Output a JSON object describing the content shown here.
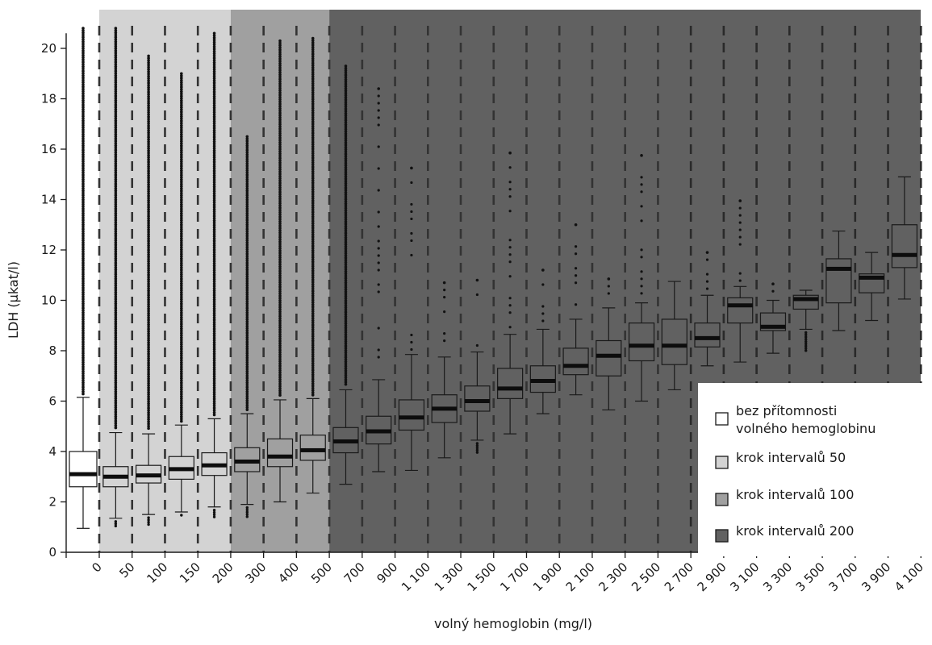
{
  "chart_data": {
    "type": "boxplot",
    "xlabel": "volný hemoglobin (mg/l)",
    "ylabel": "LDH (µkat/l)",
    "ylim": [
      0,
      21
    ],
    "yticks": [
      0,
      2,
      4,
      6,
      8,
      10,
      12,
      14,
      16,
      18,
      20
    ],
    "xtick_labels": [
      "0",
      "50",
      "100",
      "150",
      "200",
      "300",
      "400",
      "500",
      "700",
      "900",
      "1 100",
      "1 300",
      "1 500",
      "1 700",
      "1 900",
      "2 100",
      "2 300",
      "2 500",
      "2 700",
      "2 900",
      "3 100",
      "3 300",
      "3 500",
      "3 700",
      "3 900",
      "4 100"
    ],
    "legend": {
      "position": "bottom-right",
      "entries": [
        {
          "label": "bez přítomnosti volného hemoglobinu",
          "lines": [
            "bez přítomnosti",
            "volného hemoglobinu"
          ],
          "color": "#ffffff"
        },
        {
          "label": "krok intervalů 50",
          "lines": [
            "krok intervalů 50"
          ],
          "color": "#d3d3d3"
        },
        {
          "label": "krok intervalů 100",
          "lines": [
            "krok intervalů 100"
          ],
          "color": "#a0a0a0"
        },
        {
          "label": "krok intervalů 200",
          "lines": [
            "krok intervalů 200"
          ],
          "color": "#616161"
        }
      ]
    },
    "boxes": [
      {
        "group": 0,
        "q1": 2.6,
        "median": 3.1,
        "q3": 4.0,
        "whisker_low": 0.95,
        "whisker_high": 6.15,
        "outliers_max": 20.8
      },
      {
        "group": 1,
        "q1": 2.6,
        "median": 3.0,
        "q3": 3.4,
        "whisker_low": 1.35,
        "whisker_high": 4.75,
        "outliers_min": 1.0,
        "outliers_max": 20.8
      },
      {
        "group": 1,
        "q1": 2.75,
        "median": 3.05,
        "q3": 3.45,
        "whisker_low": 1.5,
        "whisker_high": 4.7,
        "outliers_min": 1.1,
        "outliers_max": 19.7
      },
      {
        "group": 1,
        "q1": 2.9,
        "median": 3.3,
        "q3": 3.8,
        "whisker_low": 1.6,
        "whisker_high": 5.05,
        "outliers_min": 1.45,
        "outliers_max": 19.0
      },
      {
        "group": 1,
        "q1": 3.05,
        "median": 3.45,
        "q3": 3.95,
        "whisker_low": 1.8,
        "whisker_high": 5.3,
        "outliers_min": 1.4,
        "outliers_max": 20.6
      },
      {
        "group": 2,
        "q1": 3.2,
        "median": 3.6,
        "q3": 4.15,
        "whisker_low": 1.9,
        "whisker_high": 5.5,
        "outliers_min": 1.35,
        "outliers_max": 16.5
      },
      {
        "group": 2,
        "q1": 3.4,
        "median": 3.8,
        "q3": 4.5,
        "whisker_low": 2.0,
        "whisker_high": 6.05,
        "outliers_max": 20.3
      },
      {
        "group": 2,
        "q1": 3.65,
        "median": 4.05,
        "q3": 4.65,
        "whisker_low": 2.35,
        "whisker_high": 6.1,
        "outliers_max": 20.4
      },
      {
        "group": 3,
        "q1": 3.95,
        "median": 4.4,
        "q3": 4.95,
        "whisker_low": 2.7,
        "whisker_high": 6.45,
        "outliers_max": 19.3
      },
      {
        "group": 3,
        "q1": 4.3,
        "median": 4.8,
        "q3": 5.4,
        "whisker_low": 3.2,
        "whisker_high": 6.85,
        "outliers_max": 18.4
      },
      {
        "group": 3,
        "q1": 4.85,
        "median": 5.35,
        "q3": 6.05,
        "whisker_low": 3.25,
        "whisker_high": 7.85,
        "outliers_max": 15.25
      },
      {
        "group": 3,
        "q1": 5.15,
        "median": 5.7,
        "q3": 6.25,
        "whisker_low": 3.75,
        "whisker_high": 7.75,
        "outliers_max": 10.7
      },
      {
        "group": 3,
        "q1": 5.6,
        "median": 6.0,
        "q3": 6.6,
        "whisker_low": 4.45,
        "whisker_high": 7.95,
        "outliers_min": 3.9,
        "outliers_max": 10.8
      },
      {
        "group": 3,
        "q1": 6.1,
        "median": 6.5,
        "q3": 7.3,
        "whisker_low": 4.7,
        "whisker_high": 8.65,
        "outliers_max": 15.85
      },
      {
        "group": 3,
        "q1": 6.35,
        "median": 6.8,
        "q3": 7.4,
        "whisker_low": 5.5,
        "whisker_high": 8.85,
        "outliers_max": 11.2
      },
      {
        "group": 3,
        "q1": 7.05,
        "median": 7.4,
        "q3": 8.1,
        "whisker_low": 6.25,
        "whisker_high": 9.25,
        "outliers_max": 13.0
      },
      {
        "group": 3,
        "q1": 7.0,
        "median": 7.8,
        "q3": 8.4,
        "whisker_low": 5.65,
        "whisker_high": 9.7,
        "outliers_max": 10.85
      },
      {
        "group": 3,
        "q1": 7.6,
        "median": 8.2,
        "q3": 9.1,
        "whisker_low": 6.0,
        "whisker_high": 9.9,
        "outliers_max": 15.75
      },
      {
        "group": 3,
        "q1": 7.45,
        "median": 8.2,
        "q3": 9.25,
        "whisker_low": 6.45,
        "whisker_high": 10.75
      },
      {
        "group": 3,
        "q1": 8.15,
        "median": 8.5,
        "q3": 9.1,
        "whisker_low": 7.4,
        "whisker_high": 10.2,
        "outliers_max": 11.9
      },
      {
        "group": 3,
        "q1": 9.1,
        "median": 9.8,
        "q3": 10.1,
        "whisker_low": 7.55,
        "whisker_high": 10.55,
        "outliers_max": 13.95
      },
      {
        "group": 3,
        "q1": 8.8,
        "median": 8.95,
        "q3": 9.5,
        "whisker_low": 7.9,
        "whisker_high": 10.0,
        "outliers_max": 10.65
      },
      {
        "group": 3,
        "q1": 9.65,
        "median": 10.05,
        "q3": 10.2,
        "whisker_low": 8.85,
        "whisker_high": 10.4,
        "outliers_min": 7.95
      },
      {
        "group": 3,
        "q1": 9.9,
        "median": 11.25,
        "q3": 11.65,
        "whisker_low": 8.8,
        "whisker_high": 12.75
      },
      {
        "group": 3,
        "q1": 10.3,
        "median": 10.9,
        "q3": 11.05,
        "whisker_low": 9.2,
        "whisker_high": 11.9
      },
      {
        "group": 3,
        "q1": 11.3,
        "median": 11.8,
        "q3": 13.0,
        "whisker_low": 10.05,
        "whisker_high": 14.9
      }
    ]
  }
}
